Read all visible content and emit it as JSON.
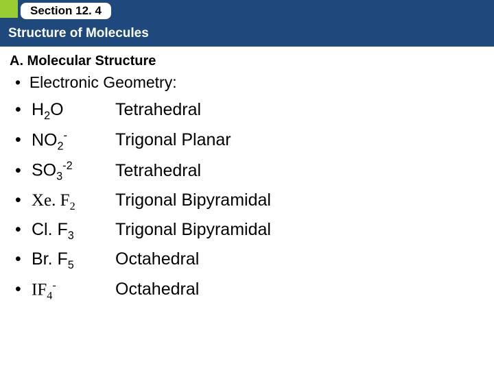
{
  "header": {
    "section_label": "Section 12. 4",
    "subtitle": "Structure of Molecules"
  },
  "heading": "A. Molecular Structure",
  "intro_bullet": "Electronic Geometry:",
  "rows": [
    {
      "base1": "H",
      "sub1": "2",
      "base2": "O",
      "sub2": "",
      "sup": "",
      "serif": false,
      "geometry": "Tetrahedral"
    },
    {
      "base1": "NO",
      "sub1": "2",
      "base2": "",
      "sub2": "",
      "sup": "-",
      "serif": false,
      "geometry": "Trigonal Planar"
    },
    {
      "base1": "SO",
      "sub1": "3",
      "base2": "",
      "sub2": "",
      "sup": "-2",
      "serif": false,
      "geometry": "Tetrahedral"
    },
    {
      "base1": "Xe. F",
      "sub1": "2",
      "base2": "",
      "sub2": "",
      "sup": "",
      "serif": true,
      "geometry": "Trigonal Bipyramidal"
    },
    {
      "base1": "Cl. F",
      "sub1": "3",
      "base2": "",
      "sub2": "",
      "sup": "",
      "serif": false,
      "geometry": " Trigonal Bipyramidal"
    },
    {
      "base1": "Br. F",
      "sub1": "5",
      "base2": "",
      "sub2": "",
      "sup": "",
      "serif": false,
      "geometry": "Octahedral"
    },
    {
      "base1": "IF",
      "sub1": "4",
      "base2": "",
      "sub2": "",
      "sup": "-",
      "serif": true,
      "geometry": "Octahedral"
    }
  ]
}
